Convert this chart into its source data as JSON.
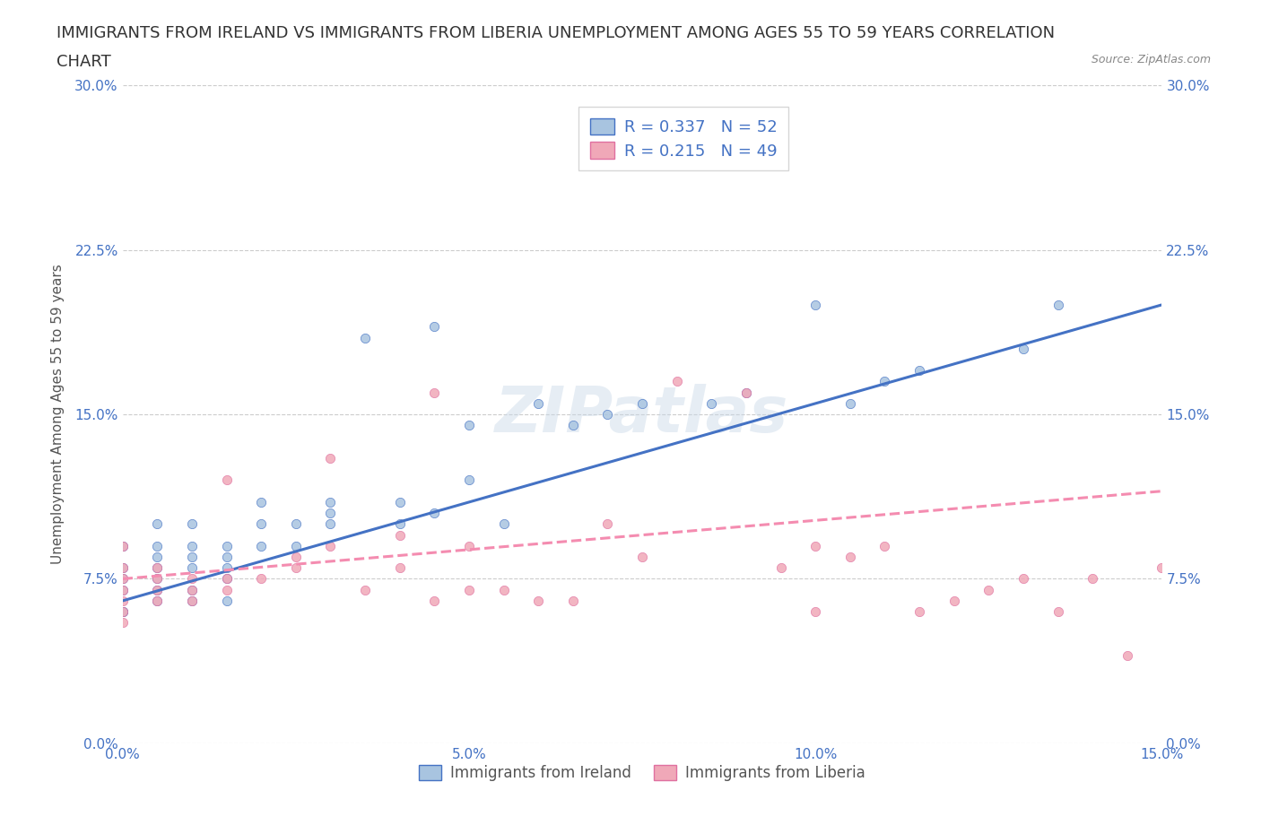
{
  "title_line1": "IMMIGRANTS FROM IRELAND VS IMMIGRANTS FROM LIBERIA UNEMPLOYMENT AMONG AGES 55 TO 59 YEARS CORRELATION",
  "title_line2": "CHART",
  "source_text": "Source: ZipAtlas.com",
  "ylabel": "Unemployment Among Ages 55 to 59 years",
  "xlabel": "",
  "xlim": [
    0.0,
    0.15
  ],
  "ylim": [
    0.0,
    0.3
  ],
  "xtick_vals": [
    0.0,
    0.05,
    0.1,
    0.15
  ],
  "xtick_labels": [
    "0.0%",
    "5.0%",
    "10.0%",
    "15.0%"
  ],
  "ytick_vals": [
    0.0,
    0.075,
    0.15,
    0.225,
    0.3
  ],
  "ytick_labels": [
    "0.0%",
    "7.5%",
    "15.0%",
    "22.5%",
    "30.0%"
  ],
  "grid_color": "#cccccc",
  "background_color": "#ffffff",
  "ireland_color": "#a8c4e0",
  "liberia_color": "#f0a8b8",
  "ireland_line_color": "#4472c4",
  "liberia_line_color": "#f48cb0",
  "liberia_edge_color": "#e070a0",
  "R_ireland": 0.337,
  "N_ireland": 52,
  "R_liberia": 0.215,
  "N_liberia": 49,
  "legend_label_ireland": "Immigrants from Ireland",
  "legend_label_liberia": "Immigrants from Liberia",
  "ireland_scatter_x": [
    0.0,
    0.0,
    0.0,
    0.0,
    0.0,
    0.0,
    0.005,
    0.005,
    0.005,
    0.005,
    0.005,
    0.005,
    0.005,
    0.01,
    0.01,
    0.01,
    0.01,
    0.01,
    0.01,
    0.015,
    0.015,
    0.015,
    0.015,
    0.015,
    0.02,
    0.02,
    0.02,
    0.025,
    0.025,
    0.03,
    0.03,
    0.03,
    0.035,
    0.04,
    0.04,
    0.045,
    0.045,
    0.05,
    0.05,
    0.055,
    0.06,
    0.065,
    0.07,
    0.075,
    0.085,
    0.09,
    0.1,
    0.105,
    0.11,
    0.115,
    0.13,
    0.135
  ],
  "ireland_scatter_y": [
    0.06,
    0.07,
    0.075,
    0.08,
    0.09,
    0.06,
    0.065,
    0.07,
    0.075,
    0.08,
    0.085,
    0.09,
    0.1,
    0.065,
    0.07,
    0.08,
    0.085,
    0.09,
    0.1,
    0.065,
    0.075,
    0.08,
    0.085,
    0.09,
    0.09,
    0.1,
    0.11,
    0.09,
    0.1,
    0.1,
    0.105,
    0.11,
    0.185,
    0.1,
    0.11,
    0.105,
    0.19,
    0.12,
    0.145,
    0.1,
    0.155,
    0.145,
    0.15,
    0.155,
    0.155,
    0.16,
    0.2,
    0.155,
    0.165,
    0.17,
    0.18,
    0.2
  ],
  "liberia_scatter_x": [
    0.0,
    0.0,
    0.0,
    0.0,
    0.0,
    0.0,
    0.0,
    0.005,
    0.005,
    0.005,
    0.005,
    0.01,
    0.01,
    0.01,
    0.015,
    0.015,
    0.015,
    0.02,
    0.025,
    0.025,
    0.03,
    0.03,
    0.035,
    0.04,
    0.04,
    0.045,
    0.045,
    0.05,
    0.05,
    0.055,
    0.06,
    0.065,
    0.07,
    0.075,
    0.08,
    0.09,
    0.095,
    0.1,
    0.1,
    0.105,
    0.11,
    0.115,
    0.12,
    0.125,
    0.13,
    0.135,
    0.14,
    0.145,
    0.15
  ],
  "liberia_scatter_y": [
    0.055,
    0.06,
    0.065,
    0.07,
    0.075,
    0.08,
    0.09,
    0.065,
    0.07,
    0.075,
    0.08,
    0.065,
    0.07,
    0.075,
    0.07,
    0.075,
    0.12,
    0.075,
    0.08,
    0.085,
    0.09,
    0.13,
    0.07,
    0.08,
    0.095,
    0.065,
    0.16,
    0.07,
    0.09,
    0.07,
    0.065,
    0.065,
    0.1,
    0.085,
    0.165,
    0.16,
    0.08,
    0.06,
    0.09,
    0.085,
    0.09,
    0.06,
    0.065,
    0.07,
    0.075,
    0.06,
    0.075,
    0.04,
    0.08
  ],
  "ireland_trendline_x": [
    0.0,
    0.15
  ],
  "ireland_trendline_y": [
    0.065,
    0.2
  ],
  "liberia_trendline_x": [
    0.0,
    0.15
  ],
  "liberia_trendline_y": [
    0.075,
    0.115
  ],
  "watermark_text": "ZIPatlas",
  "title_fontsize": 13,
  "axis_label_fontsize": 11,
  "tick_fontsize": 11,
  "legend_fontsize": 12,
  "stat_fontsize": 13
}
